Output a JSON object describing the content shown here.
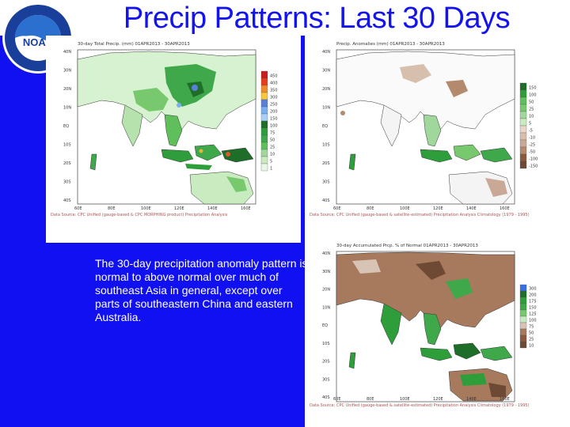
{
  "slide": {
    "title": "Precip Patterns: Last 30 Days",
    "description": "The 30-day precipitation anomaly pattern is normal to above normal over much of southeast Asia in general, except over parts of southeastern China and eastern Australia."
  },
  "logo": {
    "text": "NOAA",
    "icon": "noaa-logo"
  },
  "panels": {
    "total": {
      "title": "30-day Total Precip. (mm) 01APR2013 - 30APR2013",
      "caption": "Data Source: CPC Unified (gauge-based & CPC MORPHING product) Precipitation Analysis",
      "legend": [
        "450",
        "400",
        "350",
        "300",
        "250",
        "200",
        "150",
        "100",
        "75",
        "50",
        "25",
        "10",
        "5",
        "1"
      ],
      "lat_labels": [
        "40N",
        "30N",
        "20N",
        "10N",
        "EQ",
        "10S",
        "20S",
        "30S",
        "40S"
      ],
      "lon_labels": [
        "60E",
        "80E",
        "100E",
        "120E",
        "140E",
        "160E"
      ]
    },
    "anomaly": {
      "title": "Precip. Anomalies (mm) 01APR2013 - 30APR2013",
      "caption": "Data Source: CPC Unified (gauge-based & satellite-estimated) Precipitation Analysis Climatology (1979 - 1995)",
      "legend": [
        "150",
        "100",
        "50",
        "25",
        "10",
        "5",
        "-5",
        "-10",
        "-25",
        "-50",
        "-100",
        "-150"
      ],
      "lat_labels": [
        "40N",
        "30N",
        "20N",
        "10N",
        "EQ",
        "10S",
        "20S",
        "30S",
        "40S"
      ],
      "lon_labels": [
        "60E",
        "80E",
        "100E",
        "120E",
        "140E",
        "160E"
      ]
    },
    "percent": {
      "title": "30-day Accumulated Prcp. % of Normal 01APR2013 - 30APR2013",
      "caption": "Data Source: CPC Unified (gauge-based & satellite-estimated) Precipitation Analysis Climatology (1979 - 1995)",
      "legend": [
        "300",
        "200",
        "175",
        "150",
        "125",
        "100",
        "75",
        "50",
        "25",
        "10"
      ],
      "lat_labels": [
        "40N",
        "30N",
        "20N",
        "10N",
        "EQ",
        "10S",
        "20S",
        "30S",
        "40S"
      ],
      "lon_labels": [
        "60E",
        "80E",
        "100E",
        "120E",
        "140E",
        "160E"
      ]
    }
  },
  "colors": {
    "slide_background": "#1010f0",
    "title": "#1313f0",
    "description": "#ffffff",
    "wet": "#2e9e3a",
    "dry": "#8b5a3c"
  }
}
